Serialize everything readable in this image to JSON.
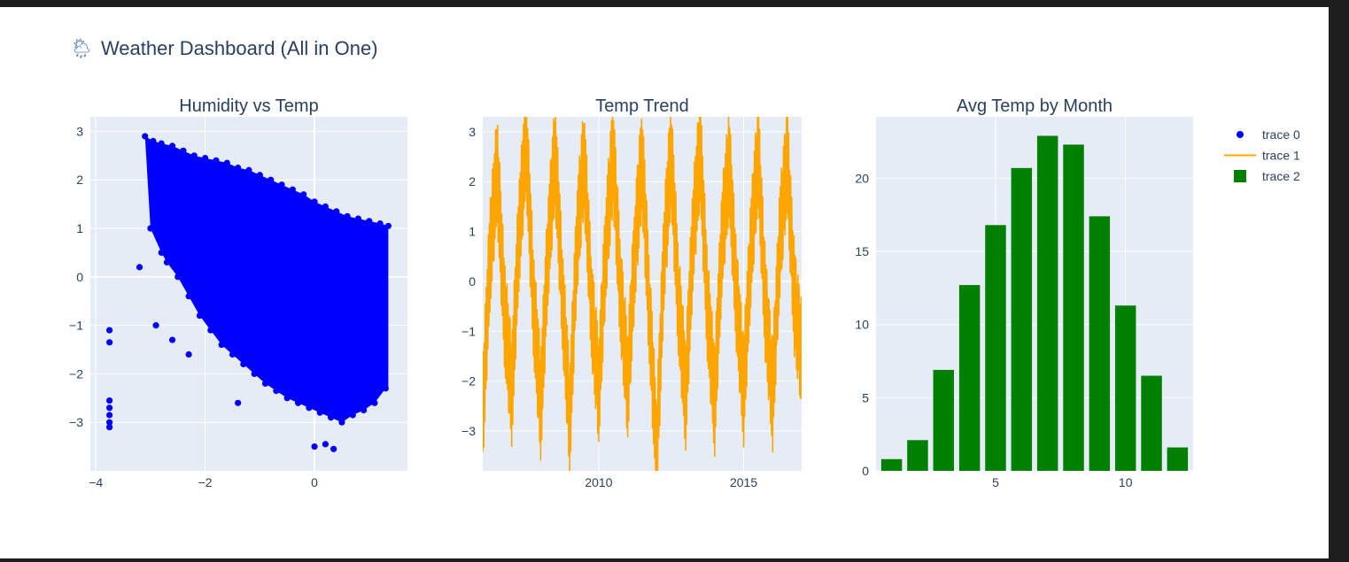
{
  "title": {
    "icon": "cloud-rain-icon",
    "emoji": "🌦",
    "text": "Weather Dashboard (All in One)"
  },
  "colors": {
    "plot_bg": "#e5ecf6",
    "grid": "#ffffff",
    "text": "#2a3f5f",
    "scatter": "#0000ff",
    "line": "#ffa500",
    "bar": "#008000"
  },
  "legend": {
    "placement": "top-right",
    "items": [
      {
        "label": "trace 0",
        "symbol": "marker"
      },
      {
        "label": "trace 1",
        "symbol": "line"
      },
      {
        "label": "trace 2",
        "symbol": "bar"
      }
    ]
  },
  "chart_data": [
    {
      "type": "scatter",
      "title": "Humidity vs Temp",
      "xlabel": "",
      "ylabel": "",
      "xlim": [
        -4.1,
        1.7
      ],
      "ylim": [
        -4.0,
        3.3
      ],
      "xticks": [
        {
          "v": -4,
          "label": "−4"
        },
        {
          "v": -2,
          "label": "−2"
        },
        {
          "v": 0,
          "label": "0"
        }
      ],
      "yticks": [
        {
          "v": -3,
          "label": "−3"
        },
        {
          "v": -2,
          "label": "−2"
        },
        {
          "v": -1,
          "label": "−1"
        },
        {
          "v": 0,
          "label": "0"
        },
        {
          "v": 1,
          "label": "1"
        },
        {
          "v": 2,
          "label": "2"
        },
        {
          "v": 3,
          "label": "3"
        }
      ],
      "grid": true,
      "series": [
        {
          "points": [
            [
              -3.1,
              2.9
            ],
            [
              -2.95,
              2.8
            ],
            [
              -2.8,
              2.75
            ],
            [
              -2.6,
              2.7
            ],
            [
              -2.4,
              2.6
            ],
            [
              -2.2,
              2.5
            ],
            [
              -2.0,
              2.45
            ],
            [
              -1.8,
              2.4
            ],
            [
              -1.6,
              2.35
            ],
            [
              -1.4,
              2.25
            ],
            [
              -1.2,
              2.2
            ],
            [
              -1.0,
              2.1
            ],
            [
              -0.8,
              2.0
            ],
            [
              -0.6,
              1.9
            ],
            [
              -0.4,
              1.8
            ],
            [
              -0.2,
              1.7
            ],
            [
              0.0,
              1.55
            ],
            [
              0.2,
              1.45
            ],
            [
              0.4,
              1.35
            ],
            [
              0.6,
              1.25
            ],
            [
              0.8,
              1.2
            ],
            [
              1.0,
              1.15
            ],
            [
              1.2,
              1.1
            ],
            [
              1.35,
              1.05
            ],
            [
              -3.0,
              1.0
            ],
            [
              -2.8,
              0.5
            ],
            [
              -2.7,
              0.3
            ],
            [
              -2.5,
              0.0
            ],
            [
              -2.3,
              -0.4
            ],
            [
              -2.1,
              -0.8
            ],
            [
              -1.9,
              -1.1
            ],
            [
              -1.7,
              -1.4
            ],
            [
              -1.5,
              -1.6
            ],
            [
              -1.3,
              -1.8
            ],
            [
              -1.1,
              -2.0
            ],
            [
              -0.9,
              -2.2
            ],
            [
              -0.7,
              -2.35
            ],
            [
              -0.5,
              -2.5
            ],
            [
              -0.3,
              -2.6
            ],
            [
              -0.1,
              -2.7
            ],
            [
              0.1,
              -2.8
            ],
            [
              0.3,
              -2.9
            ],
            [
              0.5,
              -3.0
            ],
            [
              0.7,
              -2.85
            ],
            [
              0.9,
              -2.75
            ],
            [
              1.1,
              -2.6
            ],
            [
              1.3,
              -2.3
            ],
            [
              -3.2,
              0.2
            ],
            [
              -2.9,
              -1.0
            ],
            [
              -2.6,
              -1.3
            ],
            [
              -2.3,
              -1.6
            ],
            [
              -1.4,
              -2.6
            ],
            [
              0.0,
              -3.5
            ],
            [
              0.35,
              -3.55
            ],
            [
              0.2,
              -3.45
            ],
            [
              -3.75,
              -1.1
            ],
            [
              -3.75,
              -1.35
            ],
            [
              -3.75,
              -2.55
            ],
            [
              -3.75,
              -2.7
            ],
            [
              -3.75,
              -2.85
            ],
            [
              -3.75,
              -3.0
            ],
            [
              -3.75,
              -3.1
            ]
          ]
        }
      ]
    },
    {
      "type": "line",
      "title": "Temp Trend",
      "xlabel": "",
      "ylabel": "",
      "xlim": [
        "2006-01-01",
        "2016-12-31"
      ],
      "ylim": [
        -3.8,
        3.3
      ],
      "xticks": [
        {
          "v": "2010-01-01",
          "label": "2010"
        },
        {
          "v": "2015-01-01",
          "label": "2015"
        }
      ],
      "yticks": [
        {
          "v": -3,
          "label": "−3"
        },
        {
          "v": -2,
          "label": "−2"
        },
        {
          "v": -1,
          "label": "−1"
        },
        {
          "v": 0,
          "label": "0"
        },
        {
          "v": 1,
          "label": "1"
        },
        {
          "v": 2,
          "label": "2"
        },
        {
          "v": 3,
          "label": "3"
        }
      ],
      "grid": true,
      "series": [
        {
          "x": [
            "2006-01-01",
            "2006-04-01",
            "2006-07-01",
            "2006-10-01",
            "2007-01-01",
            "2007-04-01",
            "2007-07-01",
            "2007-10-01",
            "2008-01-01",
            "2008-04-01",
            "2008-07-01",
            "2008-10-01",
            "2009-01-01",
            "2009-04-01",
            "2009-07-01",
            "2009-10-01",
            "2010-01-01",
            "2010-04-01",
            "2010-07-01",
            "2010-10-01",
            "2011-01-01",
            "2011-04-01",
            "2011-07-01",
            "2011-10-01",
            "2012-01-01",
            "2012-04-01",
            "2012-07-01",
            "2012-10-01",
            "2013-01-01",
            "2013-04-01",
            "2013-07-01",
            "2013-10-01",
            "2014-01-01",
            "2014-04-01",
            "2014-07-01",
            "2014-10-01",
            "2015-01-01",
            "2015-04-01",
            "2015-07-01",
            "2015-10-01",
            "2016-01-01",
            "2016-04-01",
            "2016-07-01",
            "2016-10-01",
            "2016-12-31"
          ],
          "y": [
            -2.7,
            0.5,
            2.3,
            -0.6,
            -2.2,
            0.9,
            2.9,
            -0.4,
            -2.5,
            0.6,
            2.6,
            -0.3,
            -2.8,
            0.8,
            2.5,
            -0.5,
            -2.2,
            0.7,
            2.6,
            -0.2,
            -2.1,
            0.6,
            2.5,
            -0.6,
            -3.5,
            0.5,
            2.6,
            -0.4,
            -2.3,
            0.9,
            2.7,
            -0.5,
            -2.4,
            0.8,
            2.4,
            -0.3,
            -2.2,
            0.6,
            2.6,
            -0.5,
            -2.3,
            0.8,
            2.5,
            -0.4,
            -1.5
          ]
        }
      ]
    },
    {
      "type": "bar",
      "title": "Avg Temp by Month",
      "xlabel": "",
      "ylabel": "",
      "xlim": [
        0.4,
        12.6
      ],
      "ylim": [
        0,
        24.2
      ],
      "xticks": [
        {
          "v": 5,
          "label": "5"
        },
        {
          "v": 10,
          "label": "10"
        }
      ],
      "yticks": [
        {
          "v": 0,
          "label": "0"
        },
        {
          "v": 5,
          "label": "5"
        },
        {
          "v": 10,
          "label": "10"
        },
        {
          "v": 15,
          "label": "15"
        },
        {
          "v": 20,
          "label": "20"
        }
      ],
      "grid": true,
      "categories": [
        1,
        2,
        3,
        4,
        5,
        6,
        7,
        8,
        9,
        10,
        11,
        12
      ],
      "values": [
        0.8,
        2.1,
        6.9,
        12.7,
        16.8,
        20.7,
        22.9,
        22.3,
        17.4,
        11.3,
        6.5,
        1.6
      ]
    }
  ]
}
